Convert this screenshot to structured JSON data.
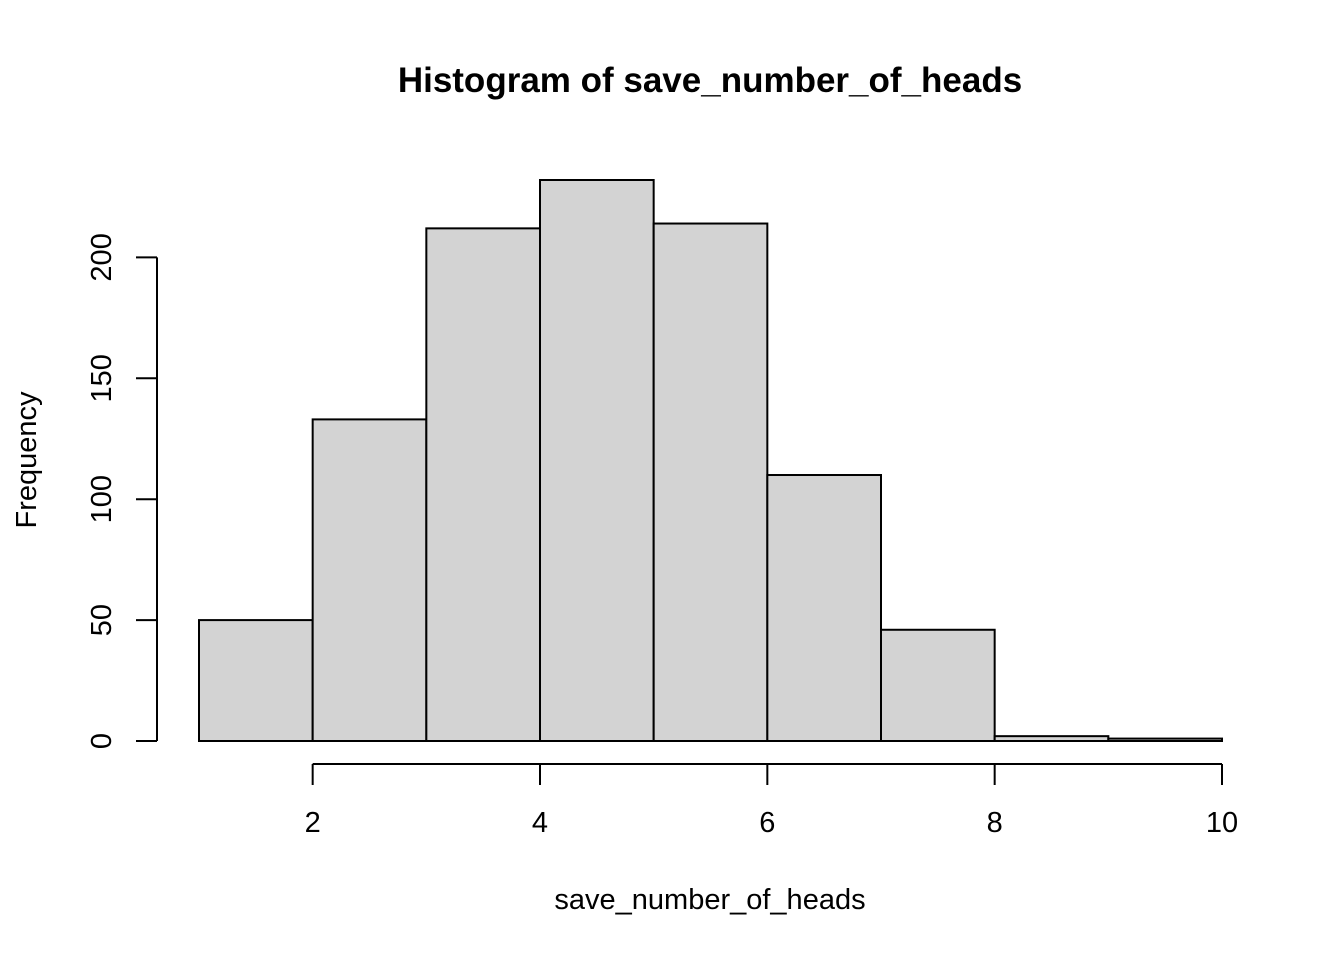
{
  "chart_data": {
    "type": "bar",
    "title": "Histogram of save_number_of_heads",
    "xlabel": "save_number_of_heads",
    "ylabel": "Frequency",
    "bins": [
      {
        "from": 1,
        "to": 2,
        "count": 50
      },
      {
        "from": 2,
        "to": 3,
        "count": 133
      },
      {
        "from": 3,
        "to": 4,
        "count": 212
      },
      {
        "from": 4,
        "to": 5,
        "count": 232
      },
      {
        "from": 5,
        "to": 6,
        "count": 214
      },
      {
        "from": 6,
        "to": 7,
        "count": 110
      },
      {
        "from": 7,
        "to": 8,
        "count": 46
      },
      {
        "from": 8,
        "to": 9,
        "count": 2
      },
      {
        "from": 9,
        "to": 10,
        "count": 1
      }
    ],
    "x_ticks": [
      2,
      4,
      6,
      8,
      10
    ],
    "y_ticks": [
      0,
      50,
      100,
      150,
      200
    ],
    "x_tick_labels": [
      "2",
      "4",
      "6",
      "8",
      "10"
    ],
    "y_tick_labels": [
      "0",
      "50",
      "100",
      "150",
      "200"
    ],
    "xlim": [
      1,
      10
    ],
    "ylim": [
      0,
      232
    ],
    "grid": false,
    "colors": {
      "bar_fill": "#d3d3d3",
      "bar_stroke": "#000000"
    }
  }
}
